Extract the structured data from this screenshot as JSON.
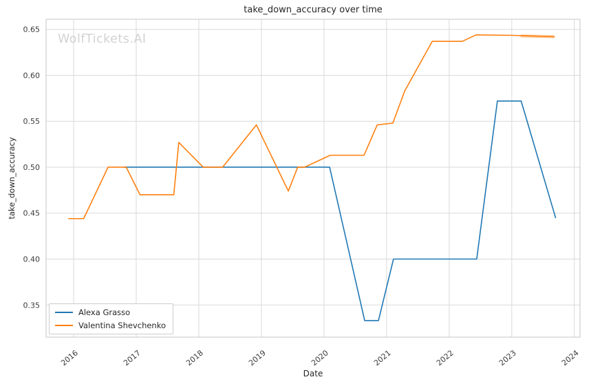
{
  "chart_data": {
    "type": "line",
    "title": "take_down_accuracy over time",
    "xlabel": "Date",
    "ylabel": "take_down_accuracy",
    "watermark": "WolfTickets.AI",
    "x_ticks": [
      "2016",
      "2017",
      "2018",
      "2019",
      "2020",
      "2021",
      "2022",
      "2023",
      "2024"
    ],
    "x_tick_values": [
      2016,
      2017,
      2018,
      2019,
      2020,
      2021,
      2022,
      2023,
      2024
    ],
    "y_ticks": [
      "0.35",
      "0.40",
      "0.45",
      "0.50",
      "0.55",
      "0.60",
      "0.65"
    ],
    "y_tick_values": [
      0.35,
      0.4,
      0.45,
      0.5,
      0.55,
      0.6,
      0.65
    ],
    "xlim": [
      2015.56,
      2024.09
    ],
    "ylim": [
      0.315,
      0.661
    ],
    "grid": true,
    "legend_position": "lower left",
    "style": {
      "grid_color": "#d9d9d9",
      "spine_color": "#c4c4c4",
      "tick_label_color": "#3a3a3a",
      "background": "#ffffff",
      "x_tick_rotation_deg": 40
    },
    "series": [
      {
        "name": "Alexa Grasso",
        "color": "#1f77b4",
        "points": [
          [
            2016.8,
            0.5
          ],
          [
            2020.09,
            0.5
          ],
          [
            2020.65,
            0.333
          ],
          [
            2020.87,
            0.333
          ],
          [
            2021.11,
            0.4
          ],
          [
            2022.44,
            0.4
          ],
          [
            2022.77,
            0.572
          ],
          [
            2023.15,
            0.572
          ],
          [
            2023.7,
            0.445
          ]
        ]
      },
      {
        "name": "Valentina Shevchenko",
        "color": "#ff7f0e",
        "points": [
          [
            2015.92,
            0.444
          ],
          [
            2016.16,
            0.444
          ],
          [
            2016.55,
            0.5
          ],
          [
            2016.84,
            0.5
          ],
          [
            2017.06,
            0.47
          ],
          [
            2017.6,
            0.47
          ],
          [
            2017.68,
            0.527
          ],
          [
            2018.07,
            0.5
          ],
          [
            2018.38,
            0.5
          ],
          [
            2018.92,
            0.546
          ],
          [
            2019.43,
            0.474
          ],
          [
            2019.58,
            0.5
          ],
          [
            2019.69,
            0.5
          ],
          [
            2020.1,
            0.513
          ],
          [
            2020.64,
            0.513
          ],
          [
            2020.85,
            0.546
          ],
          [
            2021.1,
            0.548
          ],
          [
            2021.29,
            0.583
          ],
          [
            2021.73,
            0.637
          ],
          [
            2022.21,
            0.637
          ],
          [
            2022.43,
            0.644
          ],
          [
            2023.0,
            0.6435
          ],
          [
            2023.68,
            0.642
          ]
        ],
        "overlap_segment": {
          "points": [
            [
              2023.14,
              0.6428
            ],
            [
              2023.68,
              0.642
            ]
          ],
          "color": "#ffc38c"
        }
      }
    ]
  }
}
